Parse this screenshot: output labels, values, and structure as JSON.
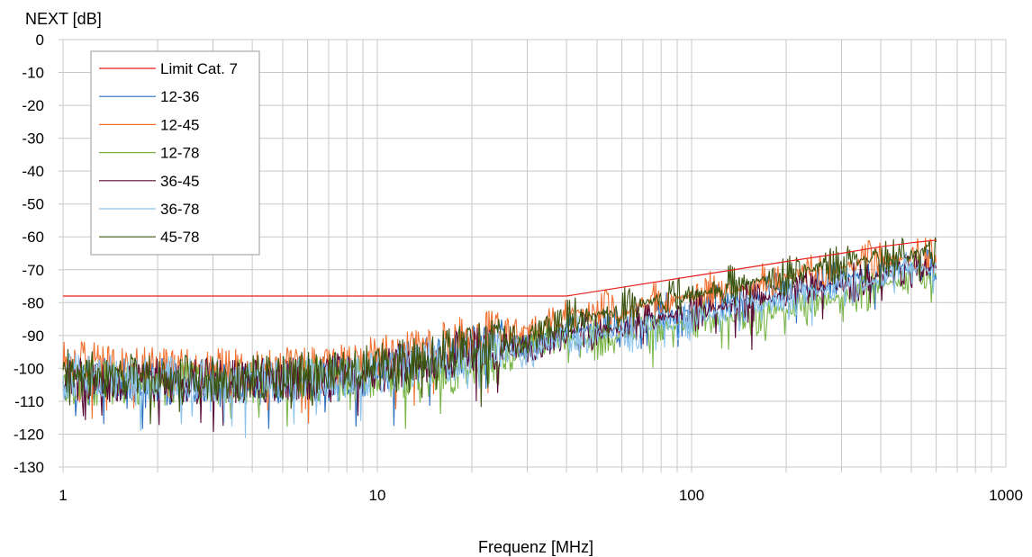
{
  "chart_data": {
    "type": "line",
    "title": "",
    "xlabel": "Frequenz [MHz]",
    "ylabel": "NEXT [dB]",
    "x_scale": "log",
    "xlim": [
      1,
      1000
    ],
    "ylim": [
      -130,
      0
    ],
    "x_ticks": [
      "1",
      "10",
      "100",
      "1000"
    ],
    "y_ticks": [
      "0",
      "-10",
      "-20",
      "-30",
      "-40",
      "-50",
      "-60",
      "-70",
      "-80",
      "-90",
      "-100",
      "-110",
      "-120",
      "-130"
    ],
    "grid": true,
    "legend_position": "top-left",
    "series": [
      {
        "name": "Limit Cat. 7",
        "color": "#e8201c",
        "x": [
          1,
          40,
          100,
          200,
          300,
          400,
          500,
          600
        ],
        "y": [
          -78,
          -78,
          -72,
          -67.5,
          -65,
          -63,
          -61.8,
          -61
        ]
      },
      {
        "name": "12-36",
        "color": "#2a6fc0",
        "x": [
          1,
          2,
          4,
          8,
          15,
          25,
          30,
          40,
          50,
          60,
          80,
          100,
          150,
          200,
          300,
          400,
          500,
          600
        ],
        "y": [
          -103,
          -104,
          -104,
          -103,
          -97,
          -92,
          -94,
          -88,
          -88,
          -88,
          -84,
          -83,
          -79,
          -77,
          -73,
          -71,
          -69,
          -69
        ]
      },
      {
        "name": "12-45",
        "color": "#f07030",
        "x": [
          1,
          2,
          4,
          8,
          15,
          25,
          30,
          40,
          50,
          60,
          80,
          100,
          150,
          200,
          300,
          400,
          500,
          600
        ],
        "y": [
          -98,
          -100,
          -101,
          -99,
          -93,
          -88,
          -90,
          -83,
          -83,
          -83,
          -79,
          -78,
          -75,
          -72,
          -69,
          -67,
          -66,
          -66
        ]
      },
      {
        "name": "12-78",
        "color": "#7ab648",
        "x": [
          1,
          2,
          4,
          8,
          15,
          25,
          30,
          40,
          50,
          60,
          80,
          100,
          150,
          200,
          300,
          400,
          500,
          600
        ],
        "y": [
          -104,
          -105,
          -104,
          -103,
          -102,
          -98,
          -93,
          -91,
          -91,
          -90,
          -88,
          -86,
          -84,
          -82,
          -78,
          -75,
          -72,
          -71
        ]
      },
      {
        "name": "36-45",
        "color": "#5a0a36",
        "x": [
          1,
          2,
          4,
          8,
          15,
          25,
          30,
          40,
          50,
          60,
          80,
          100,
          150,
          200,
          300,
          400,
          500,
          600
        ],
        "y": [
          -103,
          -104,
          -104,
          -102,
          -97,
          -93,
          -94,
          -90,
          -89,
          -88,
          -85,
          -83,
          -80,
          -78,
          -74,
          -72,
          -70,
          -69
        ]
      },
      {
        "name": "36-78",
        "color": "#8cc4ee",
        "x": [
          1,
          2,
          4,
          8,
          15,
          25,
          30,
          40,
          50,
          60,
          80,
          100,
          150,
          200,
          300,
          400,
          500,
          600
        ],
        "y": [
          -102,
          -103,
          -104,
          -103,
          -98,
          -94,
          -96,
          -90,
          -90,
          -89,
          -86,
          -85,
          -82,
          -79,
          -75,
          -73,
          -70,
          -70
        ]
      },
      {
        "name": "45-78",
        "color": "#3b5510",
        "x": [
          1,
          2,
          4,
          8,
          15,
          25,
          30,
          40,
          50,
          60,
          80,
          100,
          150,
          200,
          300,
          400,
          500,
          600
        ],
        "y": [
          -101,
          -103,
          -103,
          -101,
          -96,
          -91,
          -92,
          -85,
          -84,
          -82,
          -79,
          -78,
          -74,
          -71,
          -68,
          -66,
          -65,
          -64
        ]
      }
    ]
  }
}
